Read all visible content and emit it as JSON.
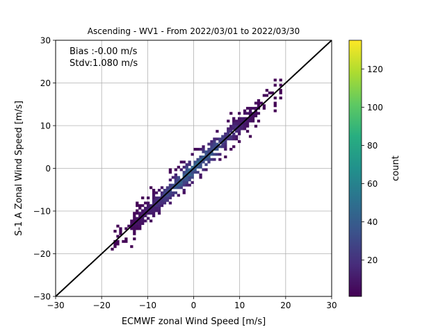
{
  "chart_data": {
    "type": "heatmap",
    "title": "Ascending - WV1 - From 2022/03/01 to 2022/03/30",
    "xlabel": "ECMWF zonal Wind Speed [m/s]",
    "ylabel": "S-1 A Zonal Wind Speed [m/s]",
    "xlim": [
      -30,
      30
    ],
    "ylim": [
      -30,
      30
    ],
    "xticks": [
      "−30",
      "−20",
      "−10",
      "0",
      "10",
      "20",
      "30"
    ],
    "yticks": [
      "−30",
      "−20",
      "−10",
      "0",
      "10",
      "20",
      "30"
    ],
    "grid": true,
    "annotations": {
      "bias": "Bias :-0.00 m/s",
      "stdv": "Stdv:1.080 m/s"
    },
    "reference_line": {
      "label": "y = x",
      "color": "#000000"
    },
    "density": {
      "description": "2D histogram of collocated wind speeds concentrated along the 1:1 line",
      "x_range_data": [
        -18,
        19
      ],
      "spread_sigma": 1.08,
      "peak_count": 135
    },
    "colorbar": {
      "label": "count",
      "min": 1,
      "max": 135,
      "ticks": [
        "20",
        "40",
        "60",
        "80",
        "100",
        "120"
      ],
      "colormap": "viridis"
    }
  }
}
